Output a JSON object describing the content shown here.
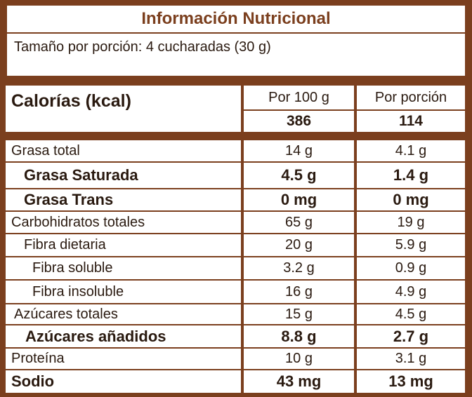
{
  "header": {
    "title": "Información Nutricional",
    "serving": "Tamaño por porción: 4 cucharadas (30 g)"
  },
  "table": {
    "columns": [
      "Calorías (kcal)",
      "Por 100 g",
      "Por porción"
    ],
    "calories": [
      "386",
      "114"
    ],
    "rows": [
      [
        "Grasa total",
        "14 g",
        "4.1 g"
      ],
      [
        "Grasa Saturada",
        "4.5 g",
        "1.4 g"
      ],
      [
        "Grasa Trans",
        "0 mg",
        "0 mg"
      ],
      [
        "Carbohidratos totales",
        "65 g",
        "19 g"
      ],
      [
        "Fibra dietaria",
        "20 g",
        "5.9 g"
      ],
      [
        "Fibra soluble",
        "3.2 g",
        "0.9 g"
      ],
      [
        "Fibra insoluble",
        "16 g",
        "4.9 g"
      ],
      [
        "Azúcares totales",
        "15 g",
        "4.5 g"
      ],
      [
        "Azúcares añadidos",
        "8.8 g",
        "2.7 g"
      ],
      [
        "Proteína",
        "10 g",
        "3.1 g"
      ],
      [
        "Sodio",
        "43 mg",
        "13 mg"
      ]
    ]
  }
}
